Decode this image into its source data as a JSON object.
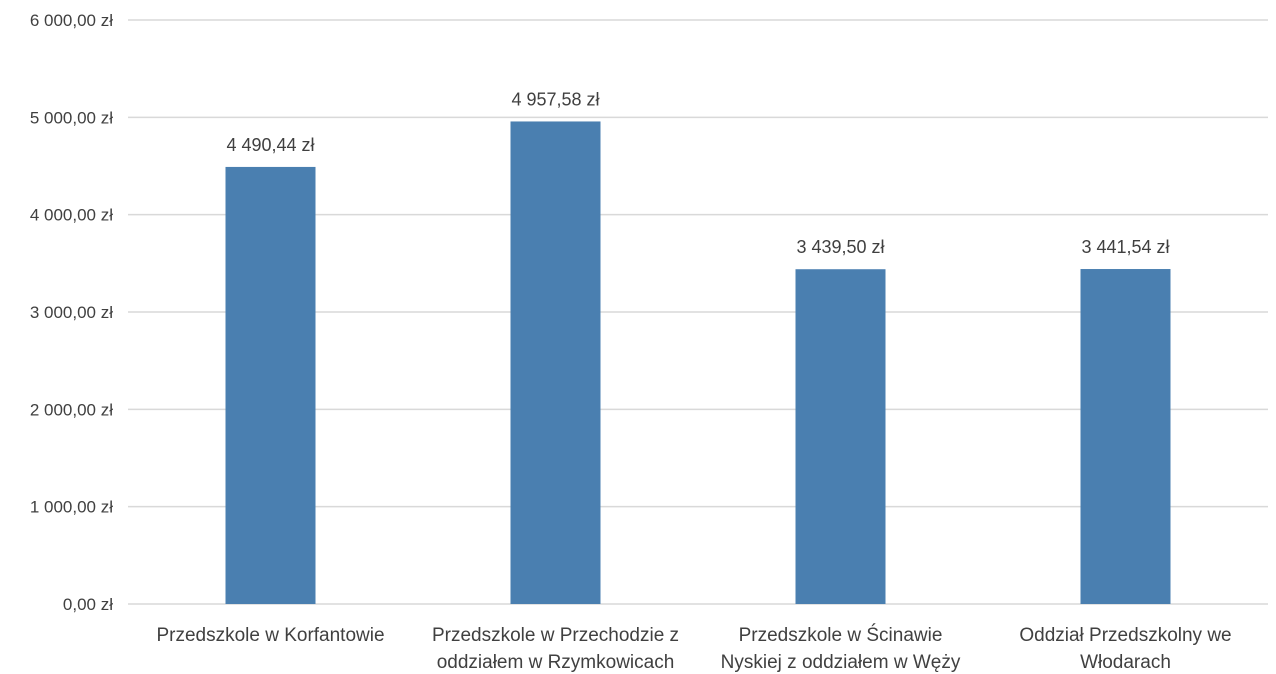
{
  "chart_data": {
    "type": "bar",
    "title": "",
    "xlabel": "",
    "ylabel": "",
    "categories": [
      [
        "Przedszkole w Korfantowie"
      ],
      [
        "Przedszkole w Przechodzie z",
        "oddziałem w Rzymkowicach"
      ],
      [
        "Przedszkole w Ścinawie",
        "Nyskiej z oddziałem w Węży"
      ],
      [
        "Oddział Przedszkolny we",
        "Włodarach"
      ]
    ],
    "values": [
      4490.44,
      4957.58,
      3439.5,
      3441.54
    ],
    "value_labels": [
      "4 490,44 zł",
      "4 957,58 zł",
      "3 439,50 zł",
      "3 441,54 zł"
    ],
    "ylim": [
      0,
      6000
    ],
    "yticks": [
      0,
      1000,
      2000,
      3000,
      4000,
      5000,
      6000
    ],
    "ytick_labels": [
      "0,00 zł",
      "1 000,00 zł",
      "2 000,00 zł",
      "3 000,00 zł",
      "4 000,00 zł",
      "5 000,00 zł",
      "6 000,00 zł"
    ],
    "grid": true,
    "bar_color": "#4a7fb0",
    "grid_color": "#d9d9d9"
  }
}
